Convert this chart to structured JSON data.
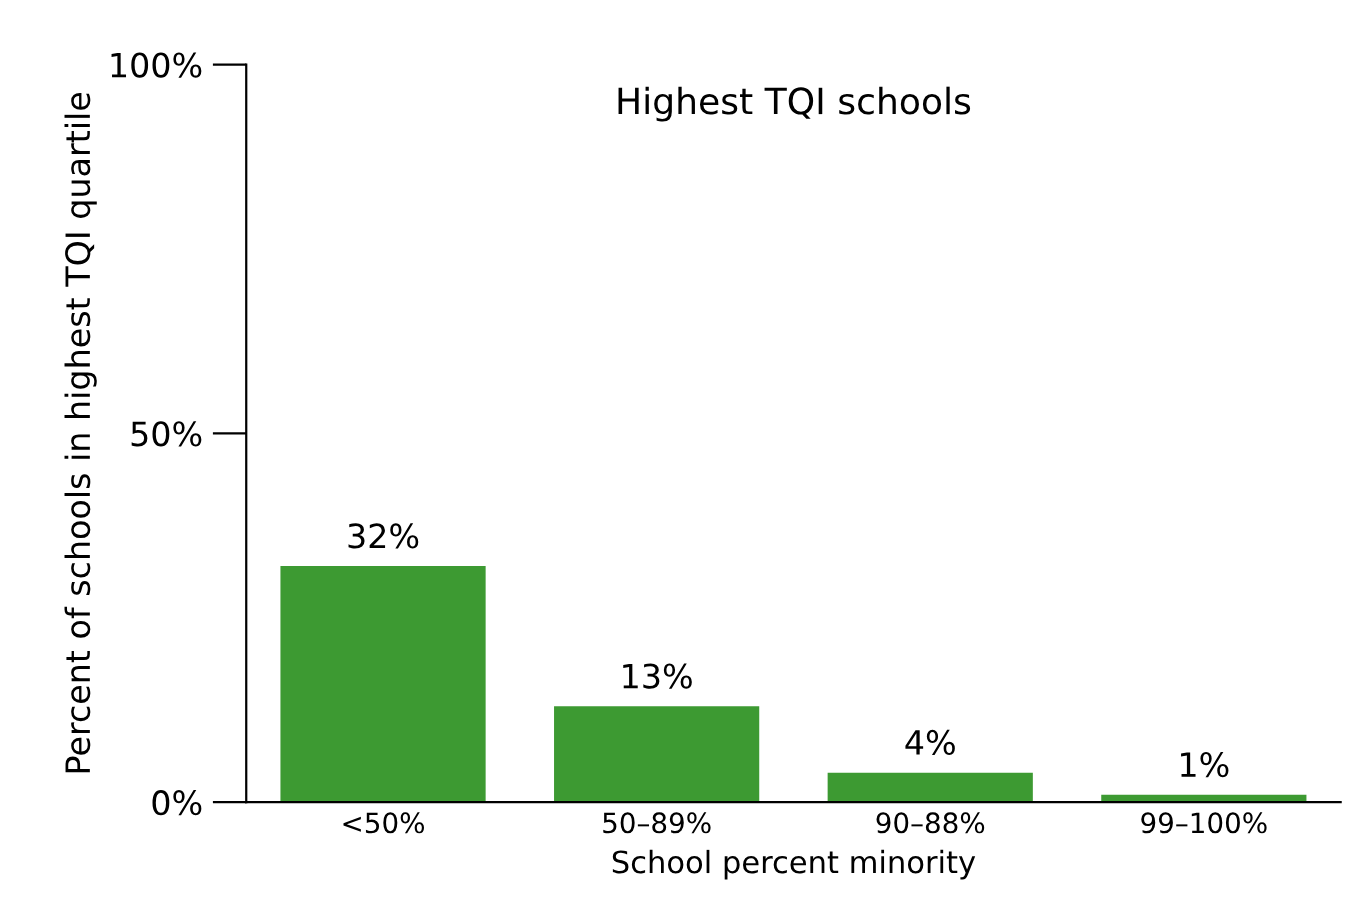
{
  "chart_data": {
    "type": "bar",
    "title": "Highest TQI schools",
    "xlabel": "School percent minority",
    "ylabel": "Percent of schools in highest TQI quartile",
    "categories": [
      "<50%",
      "50–89%",
      "90–88%",
      "99–100%"
    ],
    "values": [
      32,
      13,
      4,
      1
    ],
    "value_labels": [
      "32%",
      "13%",
      "4%",
      "1%"
    ],
    "color": "#3d9a32",
    "ylim": [
      0,
      100
    ],
    "yticks": [
      {
        "value": 0,
        "label": "0%"
      },
      {
        "value": 50,
        "label": "50%"
      },
      {
        "value": 100,
        "label": "100%"
      }
    ],
    "grid": false
  }
}
